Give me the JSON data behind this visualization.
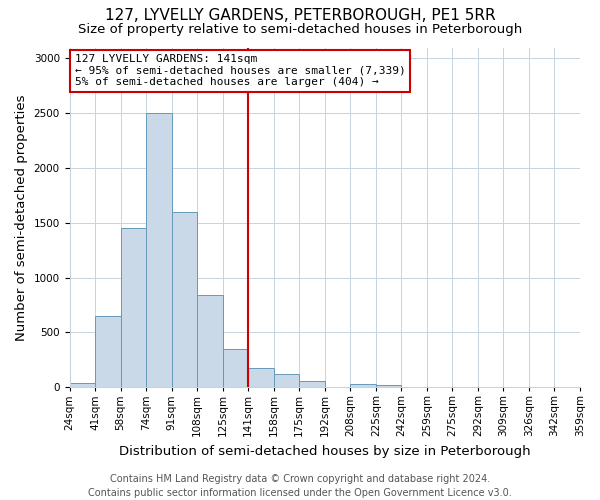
{
  "title": "127, LYVELLY GARDENS, PETERBOROUGH, PE1 5RR",
  "subtitle": "Size of property relative to semi-detached houses in Peterborough",
  "xlabel": "Distribution of semi-detached houses by size in Peterborough",
  "ylabel": "Number of semi-detached properties",
  "bin_labels": [
    "24sqm",
    "41sqm",
    "58sqm",
    "74sqm",
    "91sqm",
    "108sqm",
    "125sqm",
    "141sqm",
    "158sqm",
    "175sqm",
    "192sqm",
    "208sqm",
    "225sqm",
    "242sqm",
    "259sqm",
    "275sqm",
    "292sqm",
    "309sqm",
    "326sqm",
    "342sqm",
    "359sqm"
  ],
  "bar_heights": [
    40,
    650,
    1450,
    2500,
    1600,
    840,
    350,
    175,
    120,
    55,
    0,
    30,
    20,
    0,
    0,
    0,
    0,
    0,
    0,
    0
  ],
  "bar_color": "#c9d9e8",
  "bar_edge_color": "#6699bb",
  "vline_x_label": "141sqm",
  "vline_bin_index": 7,
  "vline_color": "#cc0000",
  "annotation_title": "127 LYVELLY GARDENS: 141sqm",
  "annotation_line1": "← 95% of semi-detached houses are smaller (7,339)",
  "annotation_line2": "5% of semi-detached houses are larger (404) →",
  "annotation_box_color": "#ffffff",
  "annotation_box_edge": "#cc0000",
  "ylim": [
    0,
    3100
  ],
  "yticks": [
    0,
    500,
    1000,
    1500,
    2000,
    2500,
    3000
  ],
  "title_fontsize": 11,
  "subtitle_fontsize": 9.5,
  "axis_label_fontsize": 9.5,
  "tick_fontsize": 7.5,
  "annotation_fontsize": 8,
  "footer_fontsize": 7,
  "background_color": "#ffffff",
  "grid_color": "#c8d4dd",
  "footer_line1": "Contains HM Land Registry data © Crown copyright and database right 2024.",
  "footer_line2": "Contains public sector information licensed under the Open Government Licence v3.0."
}
